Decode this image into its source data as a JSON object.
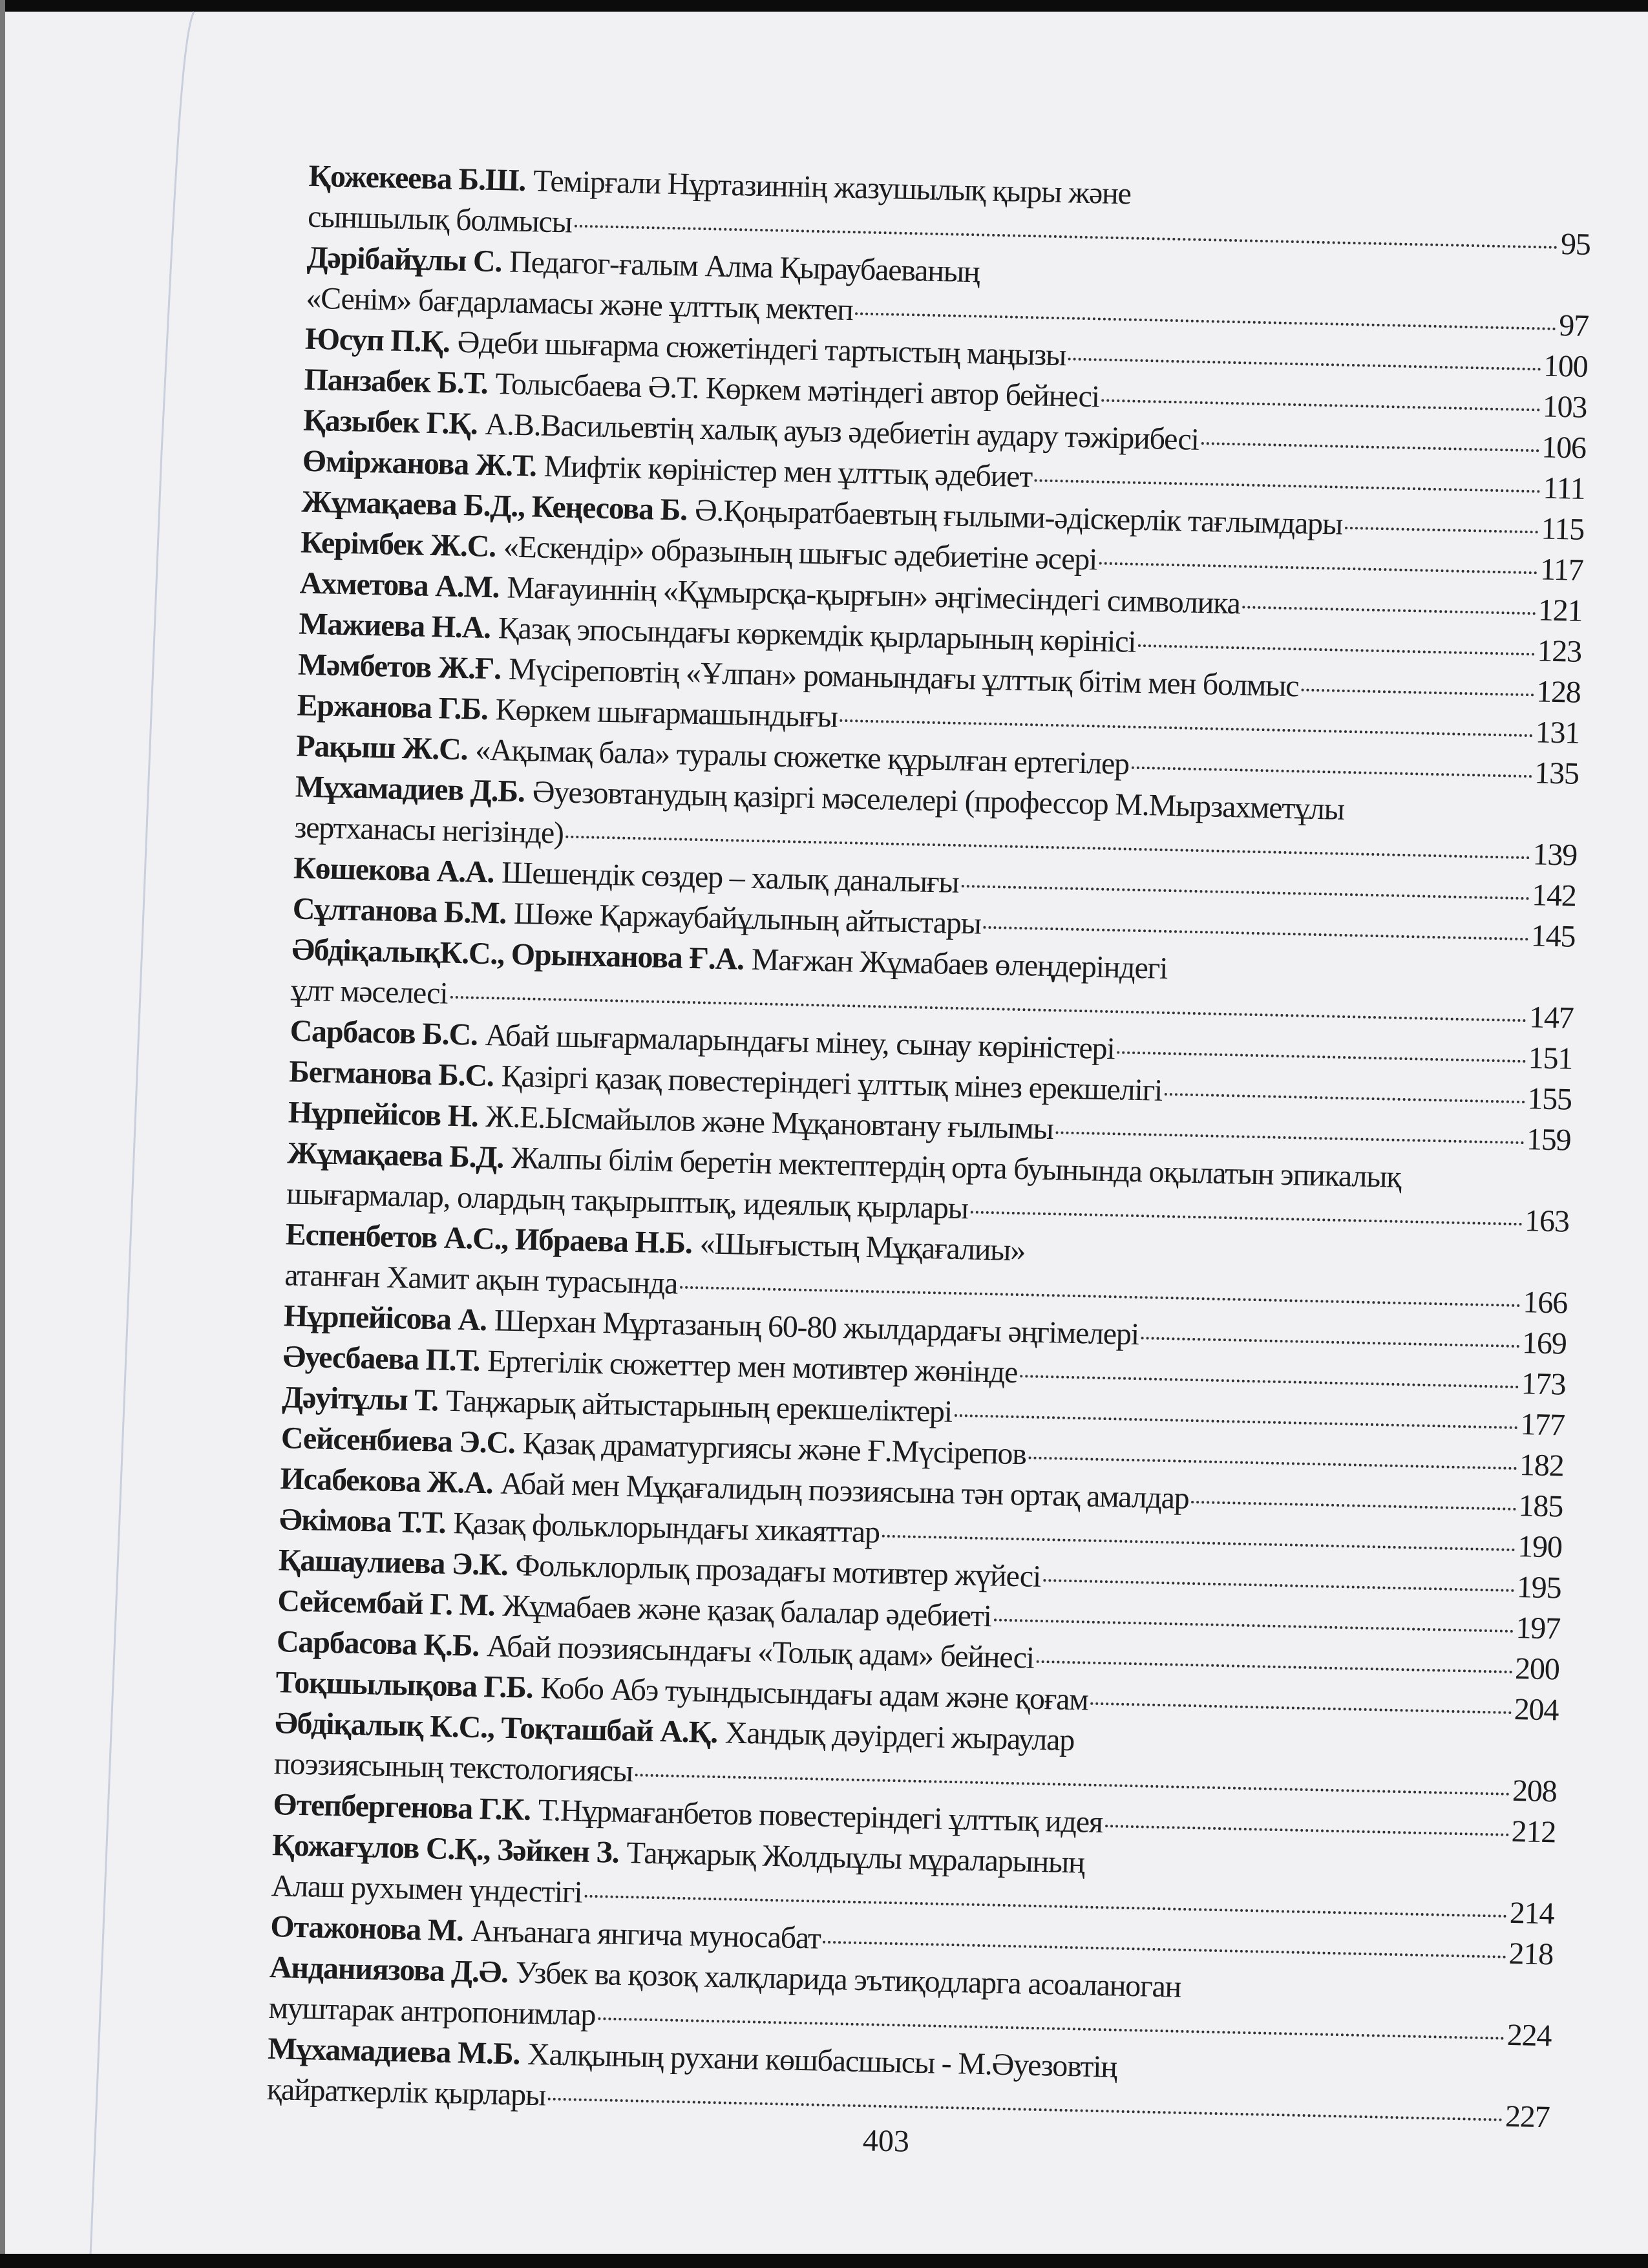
{
  "toc": [
    {
      "bold": "Қожекеева Б.Ш.",
      "text": "Темірғали Нұртазиннің жазушылық қыры және",
      "page": ""
    },
    {
      "bold": "",
      "text": "сыншылық болмысы",
      "page": "95"
    },
    {
      "bold": "Дәрібайұлы С.",
      "text": "Педагог-ғалым Алма Қыраубаеваның",
      "page": ""
    },
    {
      "bold": "",
      "text": "«Сенім» бағдарламасы және ұлттық мектеп",
      "page": "97"
    },
    {
      "bold": "Юсуп П.Қ.",
      "text": "Әдеби шығарма сюжетіндегі тартыстың маңызы",
      "page": "100"
    },
    {
      "bold": "Панзабек Б.Т.",
      "text": "Толысбаева Ә.Т. Көркем мәтіндегі автор бейнесі",
      "page": "103"
    },
    {
      "bold": "Қазыбек Г.Қ.",
      "text": "А.В.Васильевтің халық ауыз әдебиетін аудару тәжірибесі",
      "page": "106"
    },
    {
      "bold": "Өміржанова Ж.Т.",
      "text": "Мифтік көріністер мен ұлттық әдебиет",
      "page": "111"
    },
    {
      "bold": "Жұмақаева Б.Д., Кеңесова Б.",
      "text": "Ә.Қоңыратбаевтың ғылыми-әдіскерлік тағлымдары",
      "page": "115"
    },
    {
      "bold": "Керімбек Ж.С.",
      "text": "«Ескендір» образының шығыс әдебиетіне әсері",
      "page": "117"
    },
    {
      "bold": "Ахметова А.М.",
      "text": "Мағауиннің «Құмырсқа-қырғын» әңгімесіндегі символика",
      "page": "121"
    },
    {
      "bold": "Мажиева Н.А.",
      "text": "Қазақ эпосындағы көркемдік қырларының көрінісі",
      "page": "123"
    },
    {
      "bold": "Мәмбетов Ж.Ғ.",
      "text": "Мүсіреповтің «Ұлпан» романындағы ұлттық бітім мен болмыс",
      "page": "128"
    },
    {
      "bold": "Ержанова Г.Б.",
      "text": "Көркем шығармашындығы",
      "page": "131"
    },
    {
      "bold": "Рақыш Ж.С.",
      "text": "«Ақымақ бала» туралы сюжетке құрылған ертегілер",
      "page": "135"
    },
    {
      "bold": "Мұхамадиев Д.Б.",
      "text": "Әуезовтанудың қазіргі мәселелері (профессор М.Мырзахметұлы",
      "page": ""
    },
    {
      "bold": "",
      "text": "зертханасы негізінде)",
      "page": "139"
    },
    {
      "bold": "Көшекова А.А.",
      "text": "Шешендік сөздер – халық даналығы",
      "page": "142"
    },
    {
      "bold": "Сұлтанова Б.М.",
      "text": "Шөже Қаржаубайұлының айтыстары",
      "page": "145"
    },
    {
      "bold": "ӘбдіқалықК.С., Орынханова Ғ.А.",
      "text": "Мағжан Жұмабаев өлеңдеріндегі",
      "page": ""
    },
    {
      "bold": "",
      "text": "ұлт мәселесі",
      "page": "147"
    },
    {
      "bold": "Сарбасов Б.С.",
      "text": "Абай шығармаларындағы мінеу, сынау көріністері",
      "page": "151"
    },
    {
      "bold": "Бегманова Б.С.",
      "text": "Қазіргі қазақ повестеріндегі ұлттық мінез ерекшелігі",
      "page": "155"
    },
    {
      "bold": "Нұрпейісов Н.",
      "text": "Ж.Е.Ысмайылов және Мұқановтану ғылымы",
      "page": "159"
    },
    {
      "bold": "Жұмақаева Б.Д.",
      "text": "Жалпы білім беретін мектептердің орта буынында оқылатын эпикалық",
      "page": ""
    },
    {
      "bold": "",
      "text": "шығармалар, олардың тақырыптық, идеялық қырлары",
      "page": "163"
    },
    {
      "bold": "Еспенбетов А.С., Ибраева Н.Б.",
      "text": "«Шығыстың Мұқағалиы»",
      "page": ""
    },
    {
      "bold": "",
      "text": "атанған Хамит ақын турасында",
      "page": "166"
    },
    {
      "bold": "Нұрпейісова А.",
      "text": "Шерхан Мұртазаның 60-80 жылдардағы әңгімелері",
      "page": "169"
    },
    {
      "bold": "Әуесбаева П.Т.",
      "text": "Ертегілік сюжеттер мен мотивтер жөнінде",
      "page": "173"
    },
    {
      "bold": "Дәуітұлы Т.",
      "text": "Таңжарық айтыстарының ерекшеліктері",
      "page": "177"
    },
    {
      "bold": "Сейсенбиева Э.С.",
      "text": "Қазақ драматургиясы және Ғ.Мүсірепов",
      "page": "182"
    },
    {
      "bold": "Исабекова Ж.А.",
      "text": "Абай мен Мұқағалидың поэзиясына тән ортақ амалдар",
      "page": "185"
    },
    {
      "bold": "Әкімова Т.Т.",
      "text": "Қазақ фольклорындағы хикаяттар",
      "page": "190"
    },
    {
      "bold": "Қашаулиева Э.К.",
      "text": "Фольклорлық прозадағы мотивтер жүйесі",
      "page": "195"
    },
    {
      "bold": "Сейсембай Г. М.",
      "text": "Жұмабаев және қазақ балалар әдебиеті",
      "page": "197"
    },
    {
      "bold": "Сарбасова Қ.Б.",
      "text": "Абай поэзиясындағы «Толық адам» бейнесі",
      "page": "200"
    },
    {
      "bold": "Тоқшылықова Г.Б.",
      "text": "Кобо Абэ туындысындағы адам және қоғам",
      "page": "204"
    },
    {
      "bold": "Әбдіқалық К.С., Тоқташбай А.Қ.",
      "text": "Хандық дәуірдегі жыраулар",
      "page": ""
    },
    {
      "bold": "",
      "text": "поэзиясының текстологиясы",
      "page": "208"
    },
    {
      "bold": "Өтепбергенова Г.К.",
      "text": "Т.Нұрмағанбетов повестеріндегі ұлттық идея",
      "page": "212"
    },
    {
      "bold": "Қожағұлов С.Қ., Зәйкен З.",
      "text": "Таңжарық Жолдыұлы мұраларының",
      "page": ""
    },
    {
      "bold": "",
      "text": "Алаш рухымен үндестігі",
      "page": "214"
    },
    {
      "bold": "Отажонова М.",
      "text": "Анъанага янгича муносабат",
      "page": "218"
    },
    {
      "bold": "Анданиязова Д.Ә.",
      "text": "Узбек ва қозоқ халқларида эътиқодларга асоаланоган",
      "page": ""
    },
    {
      "bold": "",
      "text": "муштарак антропонимлар",
      "page": "224"
    },
    {
      "bold": "Мұхамадиева М.Б.",
      "text": "Халқының рухани көшбасшысы - М.Әуезовтің",
      "page": ""
    },
    {
      "bold": "",
      "text": "қайраткерлік қырлары",
      "page": "227"
    }
  ],
  "page_number": "403",
  "colors": {
    "paper": "#f1f1f3",
    "ink": "#1c1c1c",
    "scan_border": "#0c0c0c"
  }
}
